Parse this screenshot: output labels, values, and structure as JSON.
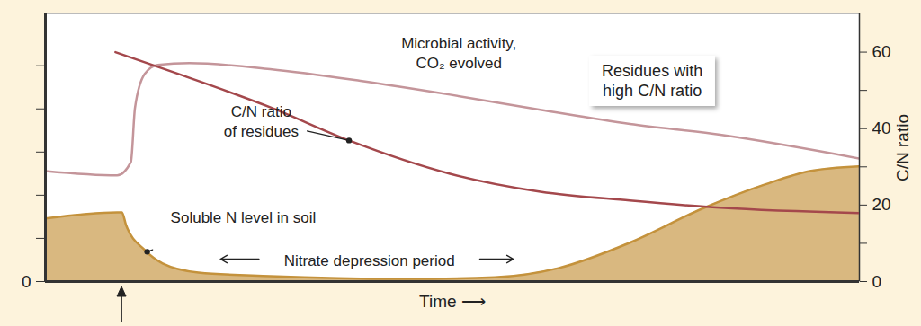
{
  "chart_data": {
    "type": "line",
    "xlabel": "Time ⟶",
    "xlim": [
      0,
      100
    ],
    "xticks": [],
    "tick_labels": "y",
    "ylim": [
      0,
      6.2
    ],
    "yticks": [
      {
        "value": 0,
        "label": "0"
      },
      {
        "value": 1,
        "label": null
      },
      {
        "value": 2,
        "label": null
      },
      {
        "value": 3,
        "label": null
      },
      {
        "value": 4,
        "label": null
      },
      {
        "value": 5,
        "label": null
      }
    ],
    "y2label": "C/N ratio",
    "y2lim": [
      0,
      70
    ],
    "y2ticks": [
      0,
      {
        "value": 10,
        "label": null
      },
      20,
      {
        "value": 30,
        "label": null
      },
      40,
      {
        "value": 50,
        "label": null
      },
      60
    ],
    "series": [
      {
        "name": "Soluble N level in soil",
        "type": "area",
        "color": "#c4923c",
        "x": [
          0,
          8.8,
          9.4,
          9.9,
          12.2,
          14.4,
          18.8,
          27.6,
          44.2,
          55.2,
          63.0,
          71.8,
          80.7,
          88.4,
          93.9,
          100
        ],
        "values": [
          1.46,
          1.6,
          1.6,
          1.31,
          0.73,
          0.42,
          0.21,
          0.125,
          0.06,
          0.1,
          0.31,
          0.9,
          1.69,
          2.25,
          2.56,
          2.67
        ]
      },
      {
        "name": "Microbial activity, CO₂ evolved",
        "type": "line",
        "color": "#c4959a",
        "x": [
          0,
          8.8,
          10.5,
          11.0,
          12.2,
          13.8,
          17.7,
          27.6,
          38.7,
          49.7,
          60.8,
          71.8,
          82.9,
          100
        ],
        "values": [
          2.56,
          2.46,
          2.77,
          4.02,
          4.81,
          5.02,
          5.06,
          4.92,
          4.65,
          4.33,
          3.98,
          3.65,
          3.4,
          2.85
        ]
      },
      {
        "name": "C/N ratio of residues",
        "type": "line",
        "color": "#a4484c",
        "axis": "y2",
        "x": [
          8.6,
          16.6,
          27.6,
          37.3,
          49.7,
          60.8,
          71.8,
          82.9,
          100
        ],
        "values": [
          60,
          54.1,
          45.6,
          36.9,
          28.2,
          23.5,
          21.2,
          19.3,
          17.9
        ]
      }
    ],
    "annotations": [
      {
        "text": "Microbial activity,\nCO₂ evolved",
        "x": 50.8,
        "y": 5.31
      },
      {
        "text": "C/N ratio\nof residues",
        "x": 26.5,
        "y": 42.1,
        "axis": "y2",
        "point": [
          37.3,
          36.9
        ]
      },
      {
        "text": "Soluble N level in soil",
        "x": 24.3,
        "y": 1.52,
        "point": [
          12.5,
          0.69
        ]
      },
      {
        "text": "Nitrate depression period",
        "x": 39.8,
        "y": 0.52,
        "span": [
          21.5,
          57.5
        ]
      },
      {
        "text": "Residues with\nhigh C/N ratio",
        "x": 74.6,
        "y": 4.65,
        "box": true
      }
    ],
    "event_x": 9.4
  }
}
